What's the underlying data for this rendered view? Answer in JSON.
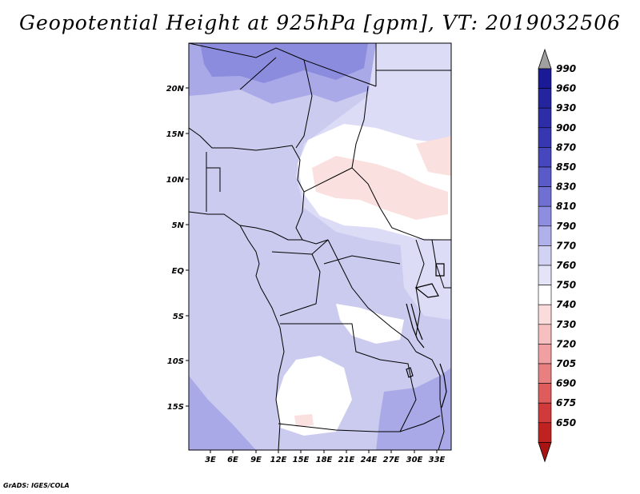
{
  "title": "Geopotential Height at 925hPa [gpm], VT: 2019032506",
  "credit": "GrADS: IGES/COLA",
  "map": {
    "lat_labels": [
      "20N",
      "15N",
      "10N",
      "5N",
      "EQ",
      "5S",
      "10S",
      "15S"
    ],
    "lon_labels": [
      "3E",
      "6E",
      "9E",
      "12E",
      "15E",
      "18E",
      "21E",
      "24E",
      "27E",
      "30E",
      "33E"
    ]
  },
  "colorbar": {
    "levels": [
      "990",
      "960",
      "930",
      "900",
      "870",
      "850",
      "830",
      "810",
      "790",
      "770",
      "760",
      "750",
      "740",
      "730",
      "720",
      "705",
      "690",
      "675",
      "650"
    ],
    "colors": [
      "#1a1a96",
      "#24249f",
      "#2d2da8",
      "#3737b2",
      "#4646bd",
      "#5a5ac8",
      "#7070d3",
      "#8e8ee0",
      "#b0b0ea",
      "#d2d2f4",
      "#e4e4f8",
      "#ffffff",
      "#fbdcdc",
      "#f6c0c0",
      "#f0a0a0",
      "#e88080",
      "#de5c5c",
      "#d03a3a",
      "#c02222",
      "#a81414"
    ],
    "over_color": "#a0a0a0"
  }
}
